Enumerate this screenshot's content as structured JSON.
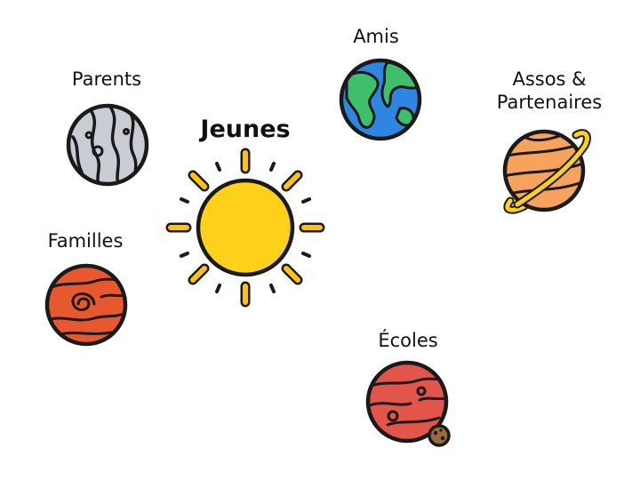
{
  "center": {
    "label": "Jeunes",
    "icon": "sun-icon"
  },
  "planets": [
    {
      "key": "parents",
      "label": "Parents",
      "icon": "gray-planet-icon"
    },
    {
      "key": "amis",
      "label": "Amis",
      "icon": "earth-icon"
    },
    {
      "key": "partenaires",
      "label_line1": "Assos &",
      "label_line2": "Partenaires",
      "icon": "saturn-icon"
    },
    {
      "key": "familles",
      "label": "Familles",
      "icon": "red-planet-icon"
    },
    {
      "key": "ecoles",
      "label": "Écoles",
      "icon": "mars-icon"
    }
  ],
  "colors": {
    "outline": "#1a1a1a",
    "sun": "#ffd11a",
    "rays": "#ffc20e",
    "gray": "#c9ccd3",
    "ocean": "#2f86e0",
    "land": "#3fbf6b",
    "saturn": "#f7a35c",
    "ring": "#ffd11a",
    "familles": "#e8582e",
    "mars": "#e2554a",
    "moon": "#9a6b3f"
  }
}
